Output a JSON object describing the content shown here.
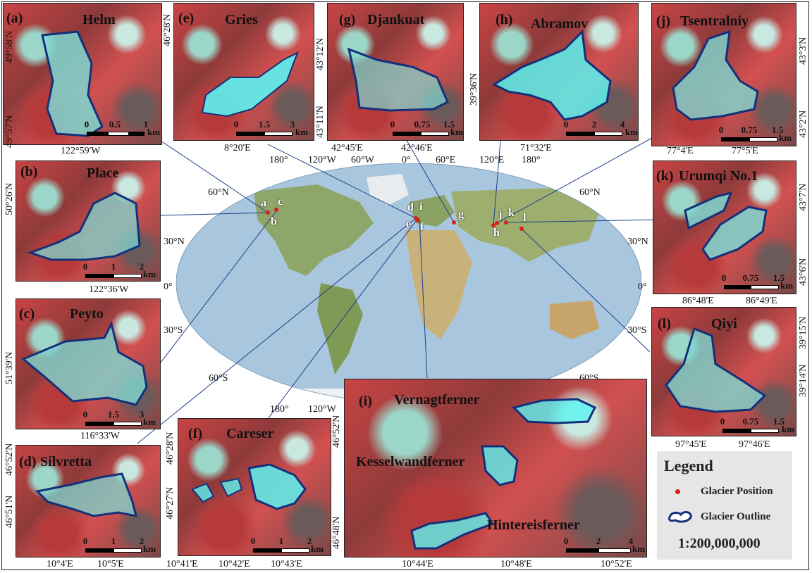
{
  "panels": {
    "a": {
      "letter": "(a)",
      "name": "Helm",
      "scale": [
        "0",
        "0.5",
        "1"
      ],
      "unit": "km",
      "lon": [
        "122°59'W"
      ],
      "lat": [
        "49°58'N",
        "49°57'N"
      ]
    },
    "e": {
      "letter": "(e)",
      "name": "Gries",
      "scale": [
        "0",
        "1.5",
        "3"
      ],
      "unit": "km",
      "lon": [
        "8°20'E"
      ],
      "lat": [
        "46°28'N"
      ]
    },
    "g": {
      "letter": "(g)",
      "name": "Djankuat",
      "scale": [
        "0",
        "0.75",
        "1.5"
      ],
      "unit": "km",
      "lon": [
        "42°45'E",
        "42°46'E"
      ],
      "lat": [
        "43°12'N",
        "43°11'N"
      ]
    },
    "h": {
      "letter": "(h)",
      "name": "Abramov",
      "scale": [
        "0",
        "2",
        "4"
      ],
      "unit": "km",
      "lon": [
        "71°32'E"
      ],
      "lat": [
        "39°36'N"
      ]
    },
    "j": {
      "letter": "(j)",
      "name": "Tsentralniy",
      "scale": [
        "0",
        "0.75",
        "1.5"
      ],
      "unit": "km",
      "lon": [
        "77°4'E",
        "77°5'E"
      ],
      "lat": [
        "43°3'N",
        "43°2'N"
      ]
    },
    "b": {
      "letter": "(b)",
      "name": "Place",
      "scale": [
        "0",
        "1",
        "2"
      ],
      "unit": "km",
      "lon": [
        "122°36'W"
      ],
      "lat": [
        "50°26'N"
      ]
    },
    "k": {
      "letter": "(k)",
      "name": "Urumqi No.1",
      "scale": [
        "0",
        "0.75",
        "1.5"
      ],
      "unit": "km",
      "lon": [
        "86°48'E",
        "86°49'E"
      ],
      "lat": [
        "43°7'N",
        "43°6'N"
      ]
    },
    "c": {
      "letter": "(c)",
      "name": "Peyto",
      "scale": [
        "0",
        "1.5",
        "3"
      ],
      "unit": "km",
      "lon": [
        "116°33'W"
      ],
      "lat": [
        "51°39'N"
      ]
    },
    "l": {
      "letter": "(l)",
      "name": "Qiyi",
      "scale": [
        "0",
        "0.75",
        "1.5"
      ],
      "unit": "km",
      "lon": [
        "97°45'E",
        "97°46'E"
      ],
      "lat": [
        "39°15'N",
        "39°14'N"
      ]
    },
    "d": {
      "letter": "(d)",
      "name": "Silvretta",
      "scale": [
        "0",
        "1",
        "2"
      ],
      "unit": "km",
      "lon": [
        "10°4'E",
        "10°5'E"
      ],
      "lat": [
        "46°52'N",
        "46°51'N"
      ]
    },
    "f": {
      "letter": "(f)",
      "name": "Careser",
      "scale": [
        "0",
        "1",
        "2"
      ],
      "unit": "km",
      "lon": [
        "10°41'E",
        "10°42'E",
        "10°43'E"
      ],
      "lat": [
        "46°28'N",
        "46°27'N"
      ]
    },
    "i": {
      "letter": "(i)",
      "names": [
        "Vernagtferner",
        "Kesselwandferner",
        "Hintereisferner"
      ],
      "scale": [
        "0",
        "2",
        "4"
      ],
      "unit": "km",
      "lon": [
        "10°44'E",
        "10°48'E",
        "10°52'E"
      ],
      "lat": [
        "46°52'N",
        "46°48'N"
      ]
    }
  },
  "worldmap": {
    "top_lon": [
      "180°",
      "120°W",
      "60°W",
      "0°",
      "60°E",
      "120°E",
      "180°"
    ],
    "bottom_lon": [
      "180°",
      "120°W"
    ],
    "lat_left": [
      "60°N",
      "30°N",
      "0°",
      "30°S",
      "60°S"
    ],
    "lat_right": [
      "60°N",
      "30°N",
      "0°",
      "30°S",
      "60°S"
    ],
    "markers": [
      "a",
      "c",
      "b",
      "d",
      "i",
      "e",
      "f",
      "g",
      "j",
      "k",
      "h",
      "l"
    ]
  },
  "legend": {
    "title": "Legend",
    "position": "Glacier Position",
    "outline": "Glacier Outline",
    "scale": "1:200,000,000"
  },
  "colors": {
    "outline": "#14307a",
    "marker": "#d62020",
    "ice": "#5cf2f0",
    "ocean": "#a7c4dd"
  }
}
